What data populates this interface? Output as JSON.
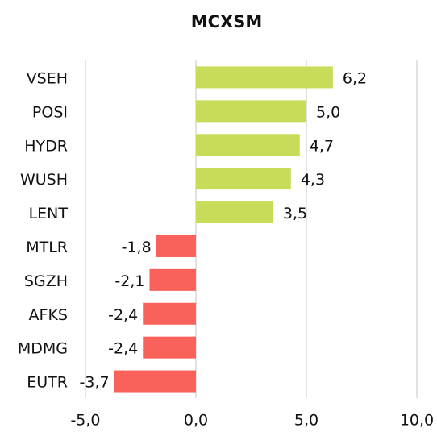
{
  "chart_data": {
    "type": "hbar",
    "title": "MCXSM",
    "categories": [
      "VSEH",
      "POSI",
      "HYDR",
      "WUSH",
      "LENT",
      "MTLR",
      "SGZH",
      "AFKS",
      "MDMG",
      "EUTR"
    ],
    "values": [
      6.2,
      5.0,
      4.7,
      4.3,
      3.5,
      -1.8,
      -2.1,
      -2.4,
      -2.4,
      -3.7
    ],
    "value_labels": [
      "6,2",
      "5,0",
      "4,7",
      "4,3",
      "3,5",
      "-1,8",
      "-2,1",
      "-2,4",
      "-2,4",
      "-3,7"
    ],
    "positive_color": "#c9dc5a",
    "negative_color": "#f8625a",
    "xlim": [
      -5,
      10
    ],
    "xticks": [
      {
        "value": -5,
        "label": "-5,0"
      },
      {
        "value": 0,
        "label": "0,0"
      },
      {
        "value": 5,
        "label": "5,0"
      },
      {
        "value": 10,
        "label": "10,0"
      }
    ],
    "grid": true
  }
}
